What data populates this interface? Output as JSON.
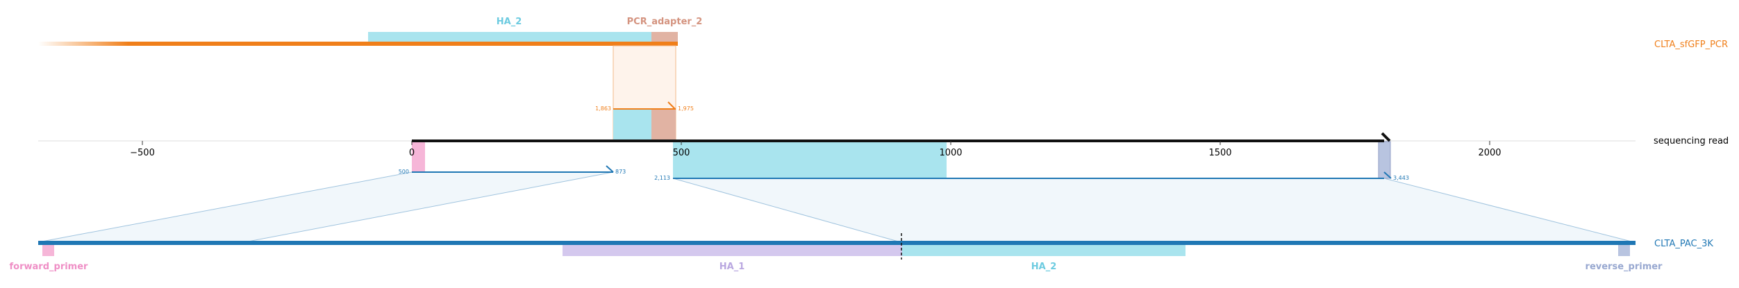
{
  "tracks": {
    "top": {
      "name": "CLTA_sfGFP_PCR",
      "color": "#f07f1a",
      "features": [
        {
          "label": "HA_2",
          "color": "#a9e4ee",
          "label_color": "#6ccbe0"
        },
        {
          "label": "PCR_adapter_2",
          "color": "#e1b3a3",
          "label_color": "#d4937f"
        }
      ],
      "match": {
        "start": "1,863",
        "end": "1,975"
      }
    },
    "middle": {
      "name": "sequencing read",
      "ticks": [
        "−500",
        "0",
        "500",
        "1000",
        "1500",
        "2000"
      ],
      "matches": [
        {
          "start": "500",
          "end": "873"
        },
        {
          "start": "2,113",
          "end": "3,443"
        }
      ]
    },
    "bottom": {
      "name": "CLTA_PAC_3K",
      "color": "#1f77b4",
      "features": [
        {
          "label": "forward_primer",
          "color": "#f6b6d8",
          "label_color": "#ef8fc6"
        },
        {
          "label": "HA_1",
          "color": "#d4c8ee",
          "label_color": "#b9a7e0"
        },
        {
          "label": "HA_2",
          "color": "#a9e4ee",
          "label_color": "#6ccbe0"
        },
        {
          "label": "reverse_primer",
          "color": "#b8c4e0",
          "label_color": "#98a8d0"
        }
      ]
    }
  }
}
